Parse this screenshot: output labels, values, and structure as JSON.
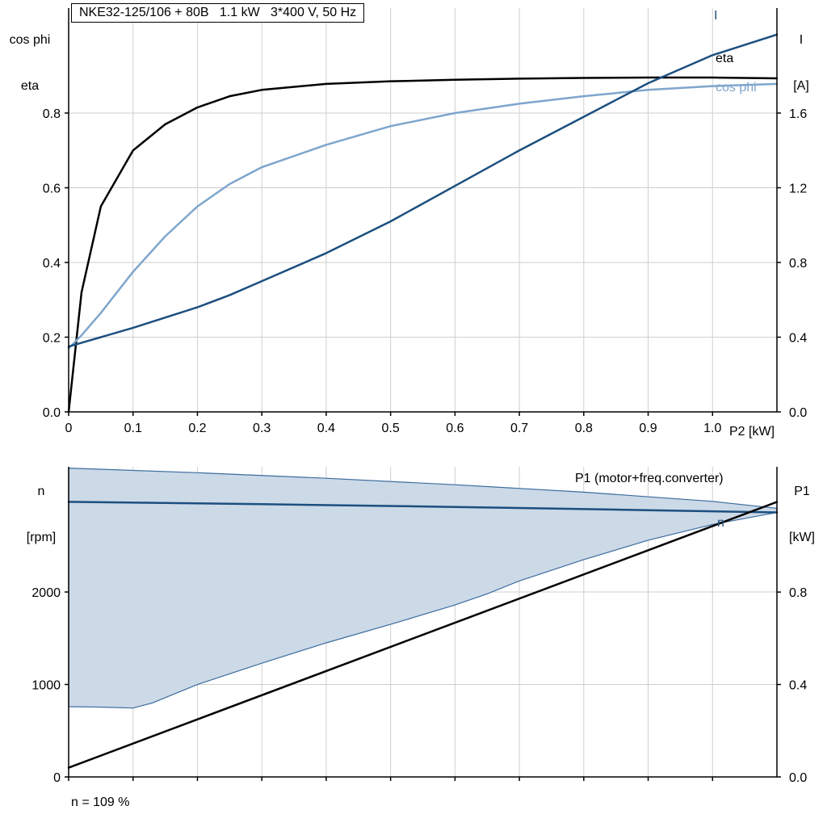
{
  "colors": {
    "black": "#000000",
    "dark_blue": "#1c4f7f",
    "light_blue": "#7ea6cc",
    "area_fill": "#ccd9e7",
    "area_stroke": "#3b6c9e",
    "grid": "#cfcfcf"
  },
  "axis_headers": {
    "top_left": {
      "line1": "cos phi",
      "line2": "eta"
    },
    "top_right": {
      "line1": "I",
      "line2": "[A]"
    },
    "bottom_left": {
      "line1": "n",
      "line2": "[rpm]"
    },
    "bottom_right": {
      "line1": "P1",
      "line2": "[kW]"
    }
  },
  "chart_data": [
    {
      "type": "line",
      "title": "NKE32-125/106 + 80B   1.1 kW   3*400 V, 50 Hz",
      "xlabel": "P2 [kW]",
      "x_range": [
        0,
        1.1
      ],
      "x_ticks": [
        0,
        0.1,
        0.2,
        0.3,
        0.4,
        0.5,
        0.6,
        0.7,
        0.8,
        0.9,
        1.0
      ],
      "x_tick_labels": [
        "0",
        "0.1",
        "0.2",
        "0.3",
        "0.4",
        "0.5",
        "0.6",
        "0.7",
        "0.8",
        "0.9",
        "1.0"
      ],
      "grid": true,
      "y_left": {
        "label": "cos phi / eta",
        "range": [
          0,
          1.081
        ],
        "ticks": [
          0,
          0.2,
          0.4,
          0.6,
          0.8
        ],
        "tick_labels": [
          "0.0",
          "0.2",
          "0.4",
          "0.6",
          "0.8"
        ]
      },
      "y_right": {
        "label": "I [A]",
        "range": [
          0,
          2.162
        ],
        "ticks": [
          0,
          0.4,
          0.8,
          1.2,
          1.6
        ],
        "tick_labels": [
          "0.0",
          "0.4",
          "0.8",
          "1.2",
          "1.6"
        ]
      },
      "series": [
        {
          "name": "eta",
          "axis": "left",
          "color": "#000000",
          "width": 2.5,
          "x": [
            0,
            0.02,
            0.05,
            0.1,
            0.15,
            0.2,
            0.25,
            0.3,
            0.4,
            0.5,
            0.6,
            0.7,
            0.8,
            0.9,
            1.0,
            1.1
          ],
          "y": [
            0,
            0.32,
            0.55,
            0.7,
            0.77,
            0.815,
            0.845,
            0.862,
            0.878,
            0.885,
            0.889,
            0.892,
            0.894,
            0.895,
            0.895,
            0.893
          ]
        },
        {
          "name": "cos phi",
          "axis": "left",
          "color": "#7ea6cc",
          "width": 2.5,
          "x": [
            0,
            0.02,
            0.05,
            0.1,
            0.15,
            0.2,
            0.25,
            0.3,
            0.4,
            0.5,
            0.6,
            0.7,
            0.8,
            0.9,
            1.0,
            1.1
          ],
          "y": [
            0.17,
            0.205,
            0.265,
            0.375,
            0.47,
            0.55,
            0.61,
            0.655,
            0.715,
            0.765,
            0.8,
            0.825,
            0.845,
            0.862,
            0.872,
            0.878
          ]
        },
        {
          "name": "I",
          "axis": "right",
          "color": "#1c4f7f",
          "width": 2.5,
          "x": [
            0,
            0.02,
            0.05,
            0.1,
            0.15,
            0.2,
            0.25,
            0.3,
            0.4,
            0.5,
            0.6,
            0.7,
            0.8,
            0.9,
            1.0,
            1.1
          ],
          "y": [
            0.35,
            0.37,
            0.4,
            0.45,
            0.505,
            0.56,
            0.625,
            0.7,
            0.85,
            1.02,
            1.21,
            1.4,
            1.58,
            1.76,
            1.91,
            2.02
          ]
        }
      ]
    },
    {
      "type": "line",
      "title": "",
      "xlabel": "",
      "note": "n = 109 %",
      "x_range": [
        0,
        1.1
      ],
      "x_ticks": [
        0,
        0.1,
        0.2,
        0.3,
        0.4,
        0.5,
        0.6,
        0.7,
        0.8,
        0.9,
        1.0
      ],
      "x_tick_labels": [],
      "grid": true,
      "y_left": {
        "label": "n [rpm]",
        "range": [
          0,
          3354
        ],
        "ticks": [
          0,
          1000,
          2000
        ],
        "tick_labels": [
          "0",
          "1000",
          "2000"
        ]
      },
      "y_right": {
        "label": "P1 [kW]",
        "range": [
          0,
          1.342
        ],
        "ticks": [
          0,
          0.4,
          0.8
        ],
        "tick_labels": [
          "0.0",
          "0.4",
          "0.8"
        ]
      },
      "area": {
        "name": "speed-range-envelope",
        "axis": "left",
        "fill": "#ccd9e7",
        "stroke": "#3b6c9e",
        "lower": {
          "x": [
            0,
            0.05,
            0.1,
            0.13,
            0.2,
            0.3,
            0.4,
            0.5,
            0.6,
            0.65,
            0.7,
            0.8,
            0.9,
            1.0,
            1.1
          ],
          "y": [
            760,
            755,
            745,
            800,
            1000,
            1230,
            1450,
            1650,
            1860,
            1980,
            2120,
            2350,
            2560,
            2730,
            2860
          ]
        },
        "upper": {
          "x": [
            0,
            0.2,
            0.4,
            0.6,
            0.8,
            1.0,
            1.1
          ],
          "y": [
            3340,
            3290,
            3230,
            3160,
            3080,
            2980,
            2905
          ]
        }
      },
      "series": [
        {
          "name": "n",
          "axis": "left",
          "color": "#1c4f7f",
          "width": 2.5,
          "x": [
            0,
            0.3,
            0.6,
            0.9,
            1.1
          ],
          "y": [
            2975,
            2950,
            2920,
            2885,
            2860
          ]
        },
        {
          "name": "P1 (motor+freq.converter)",
          "axis": "right",
          "color": "#000000",
          "width": 2.5,
          "x": [
            0,
            1.1
          ],
          "y": [
            0.04,
            1.19
          ]
        }
      ]
    }
  ]
}
